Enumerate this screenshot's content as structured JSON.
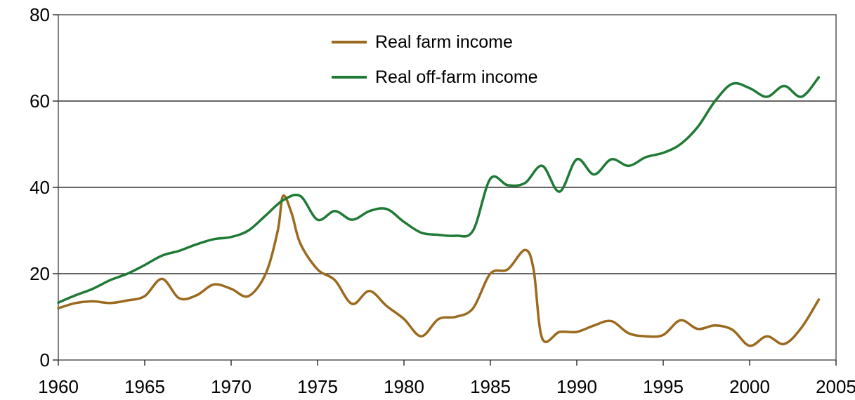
{
  "chart_data": {
    "type": "line",
    "title": "",
    "xlabel": "",
    "ylabel": "",
    "xlim": [
      1960,
      2005
    ],
    "ylim": [
      0,
      80
    ],
    "x_ticks": [
      1960,
      1965,
      1970,
      1975,
      1980,
      1985,
      1990,
      1995,
      2000,
      2005
    ],
    "y_ticks": [
      0,
      20,
      40,
      60,
      80
    ],
    "grid": "horizontal",
    "legend_position": "top-center",
    "series": [
      {
        "name": "Real farm income",
        "color": "#9b6a1e",
        "points": [
          [
            1960,
            12
          ],
          [
            1961,
            13.2
          ],
          [
            1962,
            13.6
          ],
          [
            1963,
            13.2
          ],
          [
            1964,
            13.8
          ],
          [
            1965,
            14.8
          ],
          [
            1966,
            18.8
          ],
          [
            1967,
            14.3
          ],
          [
            1968,
            15
          ],
          [
            1969,
            17.5
          ],
          [
            1970,
            16.5
          ],
          [
            1971,
            14.8
          ],
          [
            1972,
            20
          ],
          [
            1972.7,
            30
          ],
          [
            1973,
            38
          ],
          [
            1973.5,
            34
          ],
          [
            1974,
            27
          ],
          [
            1975,
            21
          ],
          [
            1976,
            18.5
          ],
          [
            1977,
            13
          ],
          [
            1978,
            16
          ],
          [
            1979,
            12.5
          ],
          [
            1980,
            9.5
          ],
          [
            1981,
            5.5
          ],
          [
            1982,
            9.5
          ],
          [
            1983,
            10
          ],
          [
            1984,
            12
          ],
          [
            1985,
            20
          ],
          [
            1986,
            21
          ],
          [
            1987,
            25.5
          ],
          [
            1987.5,
            21
          ],
          [
            1988,
            5
          ],
          [
            1989,
            6.5
          ],
          [
            1990,
            6.5
          ],
          [
            1991,
            8
          ],
          [
            1992,
            9
          ],
          [
            1993,
            6.2
          ],
          [
            1994,
            5.5
          ],
          [
            1995,
            5.8
          ],
          [
            1996,
            9.2
          ],
          [
            1997,
            7.2
          ],
          [
            1998,
            8
          ],
          [
            1999,
            7
          ],
          [
            2000,
            3.3
          ],
          [
            2001,
            5.5
          ],
          [
            2002,
            3.7
          ],
          [
            2003,
            7.5
          ],
          [
            2004,
            14
          ]
        ]
      },
      {
        "name": "Real off-farm income",
        "color": "#1f7a35",
        "points": [
          [
            1960,
            13.3
          ],
          [
            1961,
            15
          ],
          [
            1962,
            16.5
          ],
          [
            1963,
            18.5
          ],
          [
            1964,
            20
          ],
          [
            1965,
            22
          ],
          [
            1966,
            24.2
          ],
          [
            1967,
            25.3
          ],
          [
            1968,
            26.8
          ],
          [
            1969,
            28
          ],
          [
            1970,
            28.5
          ],
          [
            1971,
            30
          ],
          [
            1972,
            33.5
          ],
          [
            1973,
            37
          ],
          [
            1974,
            38
          ],
          [
            1975,
            32.5
          ],
          [
            1976,
            34.5
          ],
          [
            1977,
            32.5
          ],
          [
            1978,
            34.5
          ],
          [
            1979,
            35
          ],
          [
            1980,
            32
          ],
          [
            1981,
            29.5
          ],
          [
            1982,
            29
          ],
          [
            1983,
            28.8
          ],
          [
            1984,
            30
          ],
          [
            1985,
            42
          ],
          [
            1986,
            40.5
          ],
          [
            1987,
            41
          ],
          [
            1988,
            45
          ],
          [
            1989,
            39
          ],
          [
            1990,
            46.5
          ],
          [
            1991,
            43
          ],
          [
            1992,
            46.5
          ],
          [
            1993,
            45
          ],
          [
            1994,
            47
          ],
          [
            1995,
            48
          ],
          [
            1996,
            50
          ],
          [
            1997,
            54
          ],
          [
            1998,
            60
          ],
          [
            1999,
            64
          ],
          [
            2000,
            63
          ],
          [
            2001,
            61
          ],
          [
            2002,
            63.5
          ],
          [
            2003,
            61
          ],
          [
            2004,
            65.5
          ]
        ]
      }
    ]
  }
}
